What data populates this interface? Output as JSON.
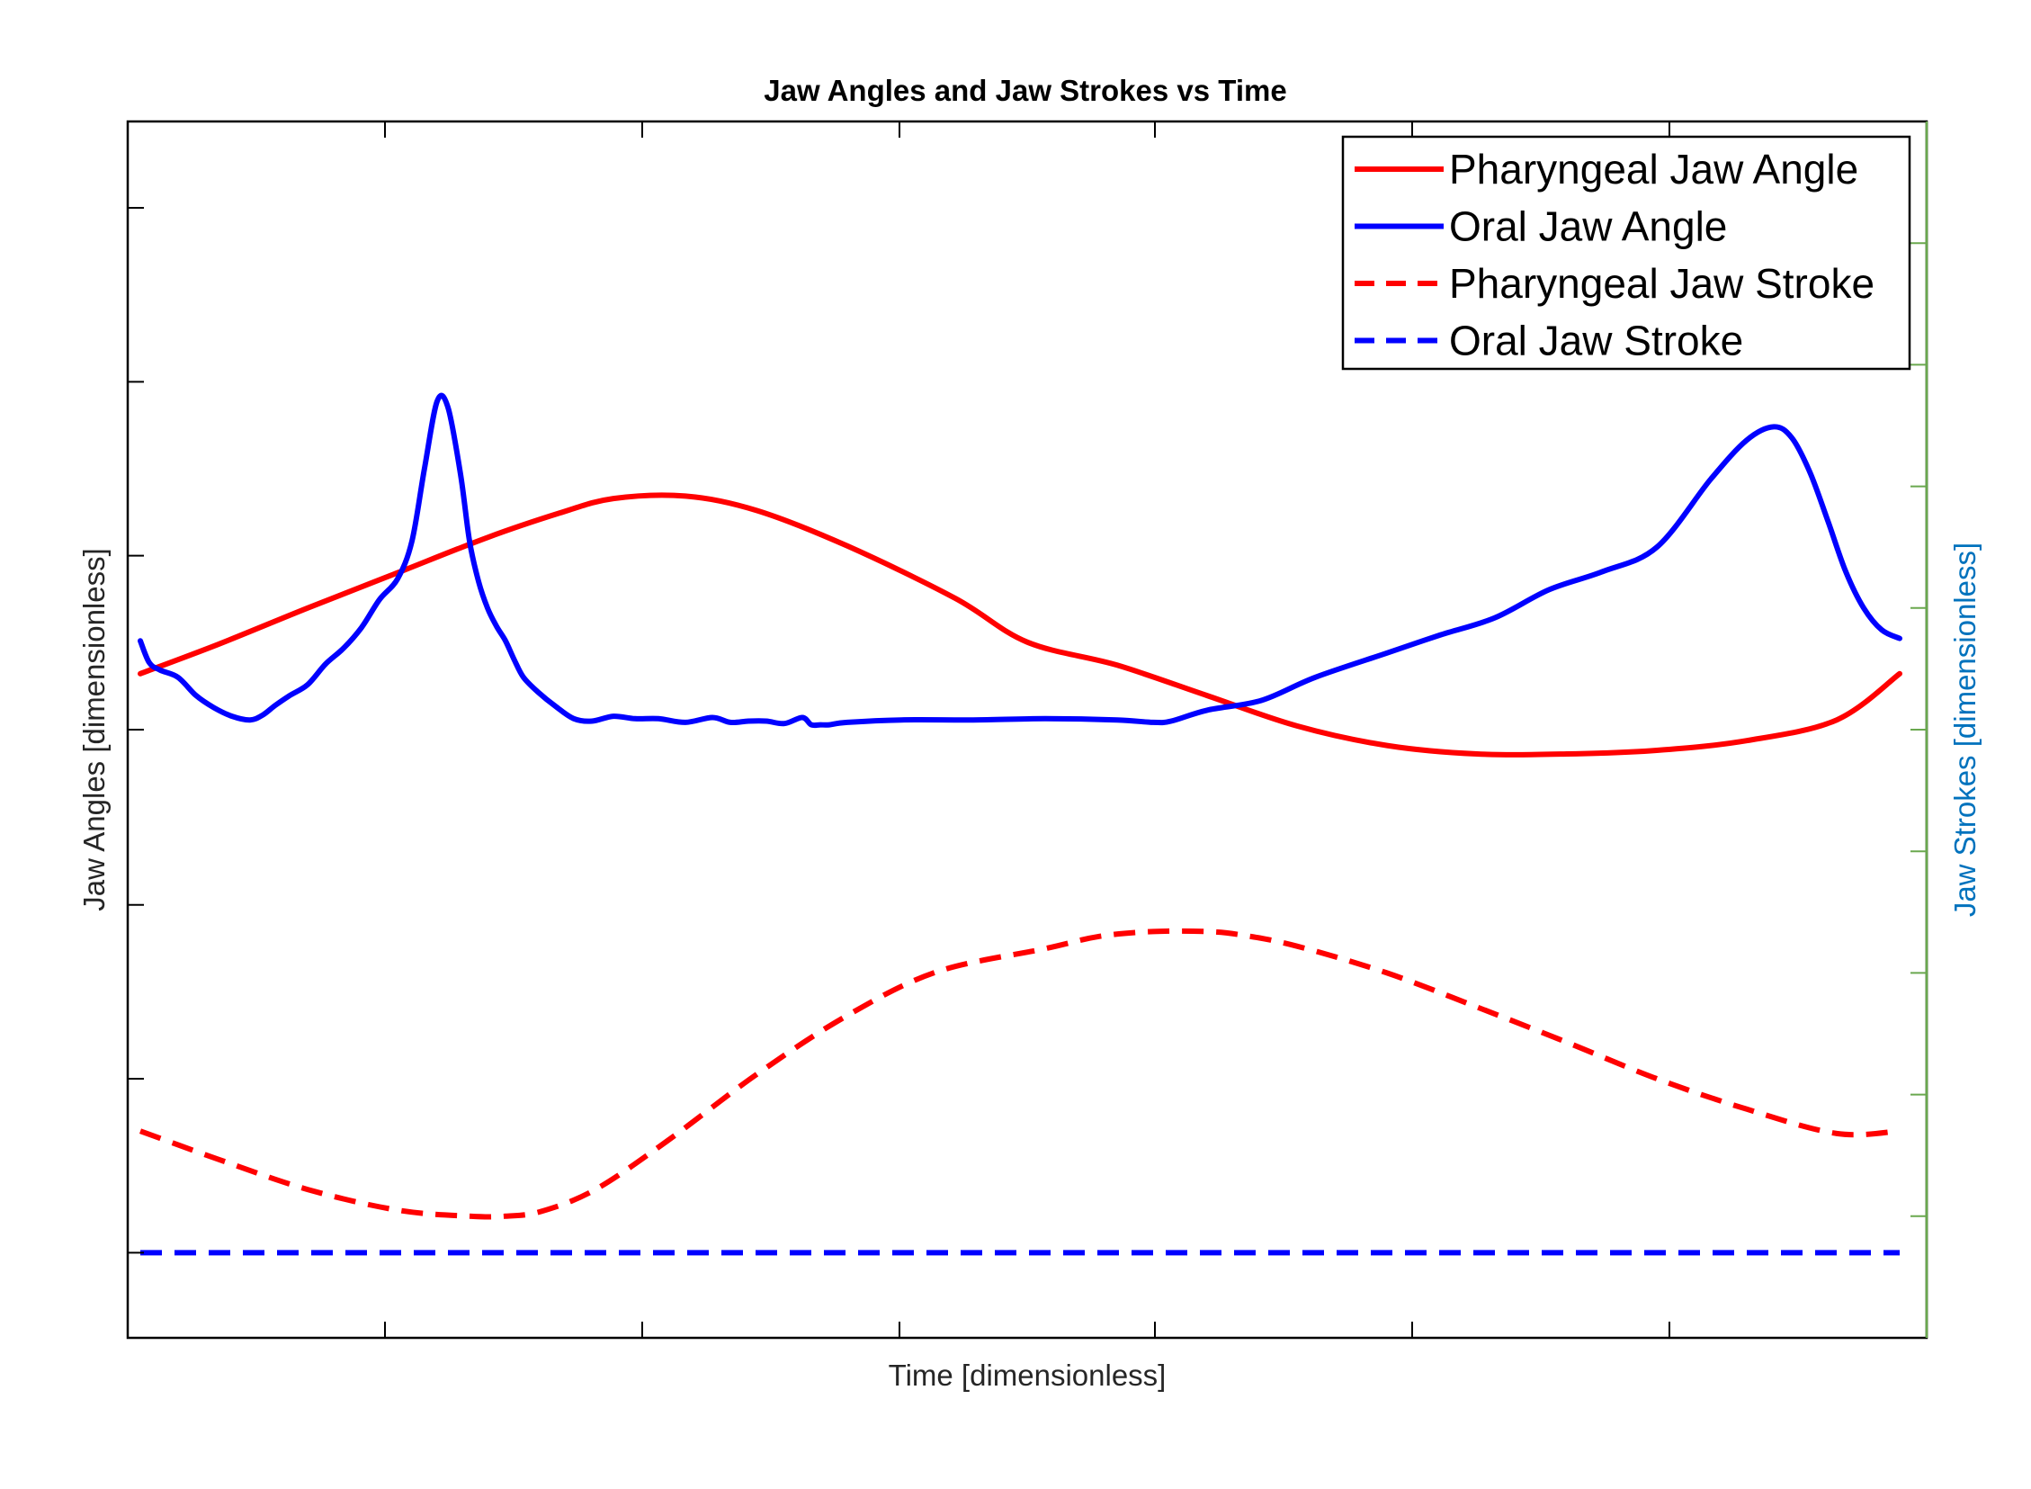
{
  "chart_data": {
    "type": "line",
    "title": "Jaw Angles and Jaw Strokes vs Time",
    "xlabel": "Time [dimensionless]",
    "ylabel": "Jaw Angles [dimensionless]",
    "ylabel_right": "Jaw Strokes [dimensionless]",
    "xlim": [
      0,
      1
    ],
    "ylim": [
      0,
      1
    ],
    "grid": false,
    "tick_labels_visible": false,
    "left_y_ticks": [
      0.07,
      0.213,
      0.356,
      0.5,
      0.643,
      0.786,
      0.929
    ],
    "right_y_ticks": [
      0.1,
      0.2,
      0.3,
      0.4,
      0.5,
      0.6,
      0.7,
      0.8,
      0.9
    ],
    "x_ticks": [
      0.143,
      0.286,
      0.429,
      0.571,
      0.714,
      0.857
    ],
    "legend_position": "top-right",
    "series": [
      {
        "name": "Pharyngeal Jaw Angle",
        "color": "#ff0000",
        "style": "solid",
        "x": [
          0.007,
          0.05,
          0.1,
          0.15,
          0.2,
          0.24,
          0.27,
          0.31,
          0.35,
          0.4,
          0.46,
          0.5,
          0.55,
          0.6,
          0.65,
          0.7,
          0.75,
          0.8,
          0.85,
          0.9,
          0.95,
          0.985
        ],
        "y": [
          0.546,
          0.57,
          0.6,
          0.629,
          0.658,
          0.678,
          0.69,
          0.692,
          0.68,
          0.651,
          0.608,
          0.572,
          0.553,
          0.528,
          0.503,
          0.487,
          0.48,
          0.48,
          0.483,
          0.491,
          0.508,
          0.546
        ]
      },
      {
        "name": "Oral Jaw Angle",
        "color": "#0000ff",
        "style": "solid",
        "x": [
          0.007,
          0.012,
          0.018,
          0.028,
          0.038,
          0.048,
          0.058,
          0.068,
          0.075,
          0.082,
          0.09,
          0.1,
          0.11,
          0.12,
          0.13,
          0.14,
          0.15,
          0.158,
          0.165,
          0.172,
          0.178,
          0.185,
          0.19,
          0.195,
          0.2,
          0.205,
          0.21,
          0.215,
          0.22,
          0.228,
          0.238,
          0.248,
          0.258,
          0.27,
          0.282,
          0.295,
          0.31,
          0.325,
          0.335,
          0.345,
          0.355,
          0.365,
          0.375,
          0.38,
          0.385,
          0.39,
          0.4,
          0.43,
          0.47,
          0.51,
          0.55,
          0.57,
          0.58,
          0.6,
          0.63,
          0.66,
          0.7,
          0.73,
          0.76,
          0.79,
          0.82,
          0.85,
          0.88,
          0.9,
          0.915,
          0.925,
          0.935,
          0.945,
          0.955,
          0.965,
          0.975,
          0.985
        ],
        "y": [
          0.573,
          0.555,
          0.549,
          0.543,
          0.528,
          0.518,
          0.511,
          0.508,
          0.512,
          0.52,
          0.528,
          0.537,
          0.554,
          0.567,
          0.584,
          0.607,
          0.624,
          0.655,
          0.715,
          0.77,
          0.765,
          0.71,
          0.655,
          0.622,
          0.6,
          0.585,
          0.573,
          0.557,
          0.543,
          0.531,
          0.519,
          0.509,
          0.507,
          0.511,
          0.509,
          0.509,
          0.506,
          0.51,
          0.506,
          0.507,
          0.507,
          0.505,
          0.51,
          0.504,
          0.504,
          0.504,
          0.506,
          0.508,
          0.508,
          0.509,
          0.508,
          0.506,
          0.507,
          0.516,
          0.524,
          0.543,
          0.563,
          0.578,
          0.592,
          0.615,
          0.63,
          0.65,
          0.706,
          0.738,
          0.749,
          0.74,
          0.712,
          0.672,
          0.63,
          0.6,
          0.582,
          0.575
        ]
      },
      {
        "name": "Pharyngeal Jaw Stroke",
        "color": "#ff0000",
        "style": "dashed",
        "x": [
          0.007,
          0.05,
          0.1,
          0.15,
          0.19,
          0.21,
          0.23,
          0.26,
          0.3,
          0.35,
          0.4,
          0.45,
          0.51,
          0.54,
          0.57,
          0.6,
          0.62,
          0.65,
          0.7,
          0.75,
          0.8,
          0.85,
          0.9,
          0.95,
          0.985
        ],
        "y": [
          0.17,
          0.147,
          0.122,
          0.105,
          0.1,
          0.1,
          0.104,
          0.122,
          0.162,
          0.217,
          0.265,
          0.301,
          0.32,
          0.33,
          0.334,
          0.334,
          0.331,
          0.322,
          0.3,
          0.272,
          0.243,
          0.213,
          0.188,
          0.168,
          0.17
        ]
      },
      {
        "name": "Oral Jaw Stroke",
        "color": "#0000ff",
        "style": "dashed",
        "x": [
          0.007,
          0.985
        ],
        "y": [
          0.07,
          0.07
        ]
      }
    ]
  }
}
